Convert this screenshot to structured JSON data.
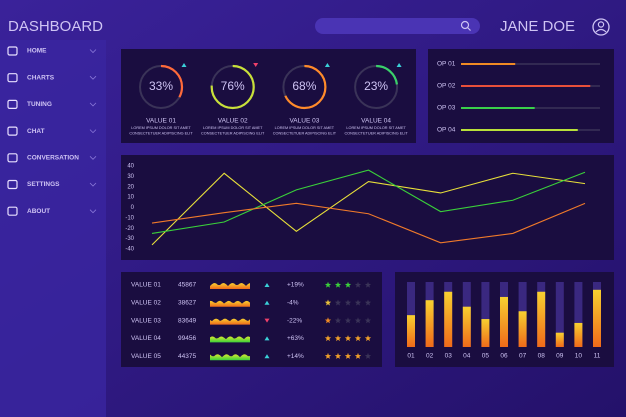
{
  "header": {
    "title": "DASHBOARD",
    "user": "JANE DOE"
  },
  "sidebar": {
    "items": [
      "HOME",
      "CHARTS",
      "TUNING",
      "CHAT",
      "CONVERSATION",
      "SETTINGS",
      "ABOUT"
    ]
  },
  "gauges": [
    {
      "value": 33,
      "label": "33%",
      "name": "VALUE 01",
      "color": "#ff6a3a",
      "trend": "up"
    },
    {
      "value": 76,
      "label": "76%",
      "name": "VALUE 02",
      "color": "#c8e03a",
      "trend": "down"
    },
    {
      "value": 68,
      "label": "68%",
      "name": "VALUE 03",
      "color": "#ff8a2a",
      "trend": "up"
    },
    {
      "value": 23,
      "label": "23%",
      "name": "VALUE 04",
      "color": "#3ad06a",
      "trend": "up"
    }
  ],
  "gauge_caption": [
    "LOREM IPSUM DOLOR SIT AMET",
    "CONSECTETUER ADIPISCING ELIT"
  ],
  "operations": {
    "xlim": [
      0,
      100
    ],
    "items": [
      {
        "name": "OP 01",
        "value": 39,
        "color": "#f08a24"
      },
      {
        "name": "OP 02",
        "value": 93,
        "color": "#e8503a"
      },
      {
        "name": "OP 03",
        "value": 53,
        "color": "#3ad04a"
      },
      {
        "name": "OP 04",
        "value": 84,
        "color": "#b8e03a"
      }
    ]
  },
  "chart_data": {
    "type": "line",
    "categories": [
      null,
      null,
      null,
      null,
      null,
      null,
      null
    ],
    "ylim": [
      -40,
      40
    ],
    "yticks": [
      40,
      30,
      20,
      10,
      0,
      -10,
      -20,
      -30,
      -40
    ],
    "series": [
      {
        "color": "#e8e03a",
        "values": [
          -36,
          33,
          -23,
          25,
          14,
          33,
          23
        ]
      },
      {
        "color": "#3ad03a",
        "values": [
          -25,
          -14,
          17,
          36,
          -4,
          7,
          34
        ]
      },
      {
        "color": "#f07a2a",
        "values": [
          -15,
          -5,
          4,
          -6,
          -34,
          -25,
          4
        ]
      }
    ]
  },
  "table": {
    "rows": [
      {
        "label": "VALUE 01",
        "number": 45867,
        "trend": "up",
        "change": "+19%",
        "rating": 3,
        "color": "#3ad03a"
      },
      {
        "label": "VALUE 02",
        "number": 38627,
        "trend": "up",
        "change": "-4%",
        "rating": 1,
        "color": "#e8c03a"
      },
      {
        "label": "VALUE 03",
        "number": 83649,
        "trend": "down",
        "change": "-22%",
        "rating": 1,
        "color": "#f08a24"
      },
      {
        "label": "VALUE 04",
        "number": 99456,
        "trend": "up",
        "change": "+63%",
        "rating": 5,
        "color": "#f0a02a"
      },
      {
        "label": "VALUE 05",
        "number": 44375,
        "trend": "up",
        "change": "+14%",
        "rating": 4,
        "color": "#f0a02a"
      }
    ]
  },
  "bar_chart": {
    "type": "bar",
    "categories": [
      "01",
      "02",
      "03",
      "04",
      "05",
      "06",
      "07",
      "08",
      "09",
      "10",
      "11"
    ],
    "values": [
      49,
      72,
      85,
      62,
      43,
      77,
      55,
      85,
      22,
      37,
      88
    ],
    "ylim": [
      0,
      100
    ]
  }
}
